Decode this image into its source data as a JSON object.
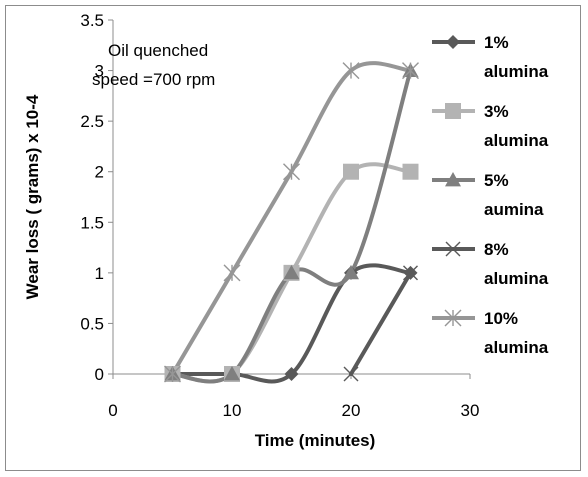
{
  "chart_data": {
    "type": "line",
    "xlabel": "Time (minutes)",
    "ylabel": "Wear loss ( grams) x 10-4",
    "xlim": [
      0,
      30
    ],
    "ylim": [
      0,
      3.5
    ],
    "xticks": [
      "0",
      "10",
      "20",
      "30"
    ],
    "yticks": [
      "0",
      "0.5",
      "1",
      "1.5",
      "2",
      "2.5",
      "3",
      "3.5"
    ],
    "annotations": [
      "Oil quenched",
      "speed =700 rpm"
    ],
    "grid": false,
    "legend_position": "right",
    "series": [
      {
        "name": [
          "1%",
          "alumina"
        ],
        "marker": "diamond",
        "color": "#595959",
        "x": [
          5,
          10,
          15,
          20,
          25
        ],
        "y": [
          0,
          0,
          0,
          1,
          1
        ]
      },
      {
        "name": [
          "3%",
          "alumina"
        ],
        "marker": "square",
        "color": "#b3b3b3",
        "x": [
          5,
          10,
          15,
          20,
          25
        ],
        "y": [
          0,
          0,
          1,
          2,
          2
        ]
      },
      {
        "name": [
          "5%",
          "aumina"
        ],
        "marker": "triangle",
        "color": "#7f7f7f",
        "x": [
          5,
          10,
          15,
          20,
          25
        ],
        "y": [
          0,
          0,
          1,
          1,
          3
        ]
      },
      {
        "name": [
          "8%",
          "alumina"
        ],
        "marker": "x",
        "color": "#595959",
        "x": [
          20,
          25
        ],
        "y": [
          0,
          1
        ]
      },
      {
        "name": [
          "10%",
          "alumina"
        ],
        "marker": "star",
        "color": "#969696",
        "x": [
          5,
          10,
          15,
          20,
          25
        ],
        "y": [
          0,
          1,
          2,
          3,
          3
        ]
      }
    ]
  }
}
